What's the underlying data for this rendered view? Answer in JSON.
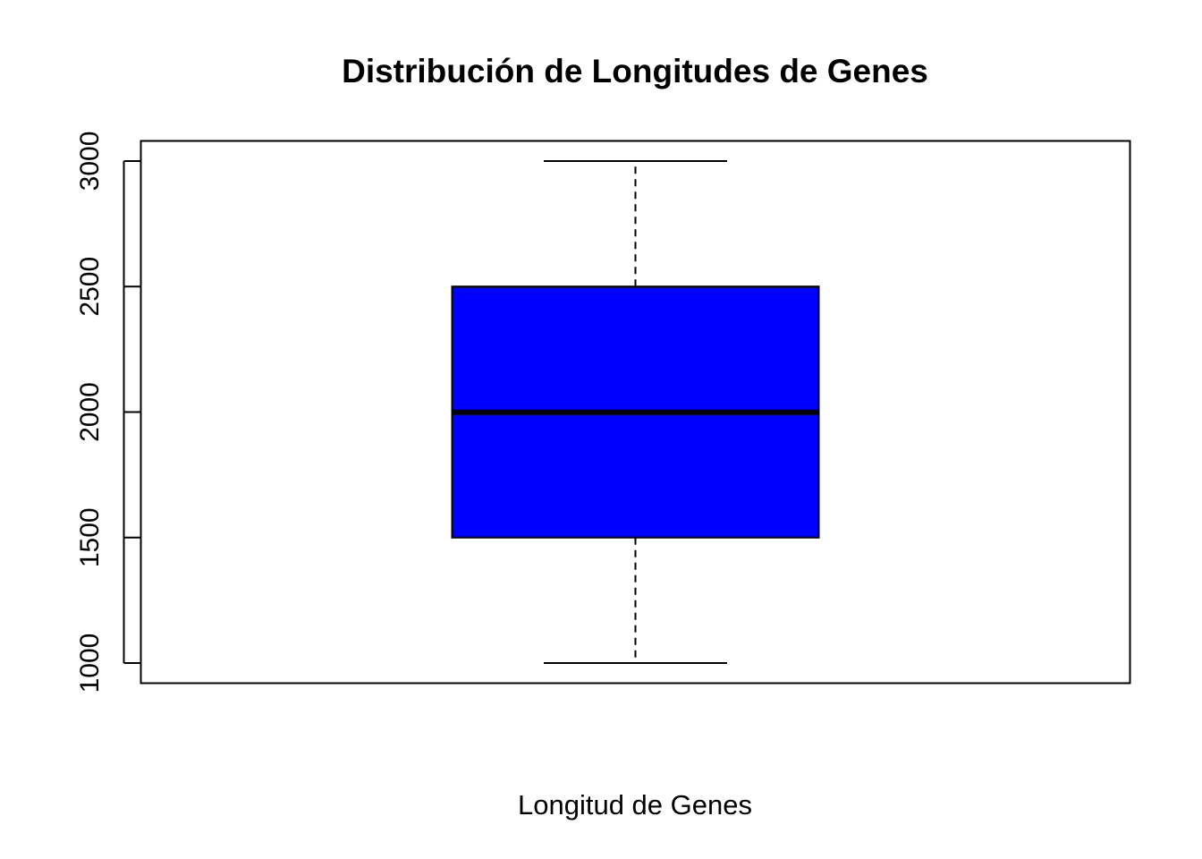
{
  "chart_data": {
    "type": "boxplot",
    "title": "Distribución de Longitudes de Genes",
    "xlabel": "Longitud de Genes",
    "ylabel": "",
    "ylim": [
      920,
      3080
    ],
    "yticks": [
      1000,
      1500,
      2000,
      2500,
      3000
    ],
    "grid": false,
    "box_color": "#0000ff",
    "boxes": [
      {
        "min": 1000,
        "q1": 1500,
        "median": 2000,
        "q3": 2500,
        "max": 3000
      }
    ]
  }
}
